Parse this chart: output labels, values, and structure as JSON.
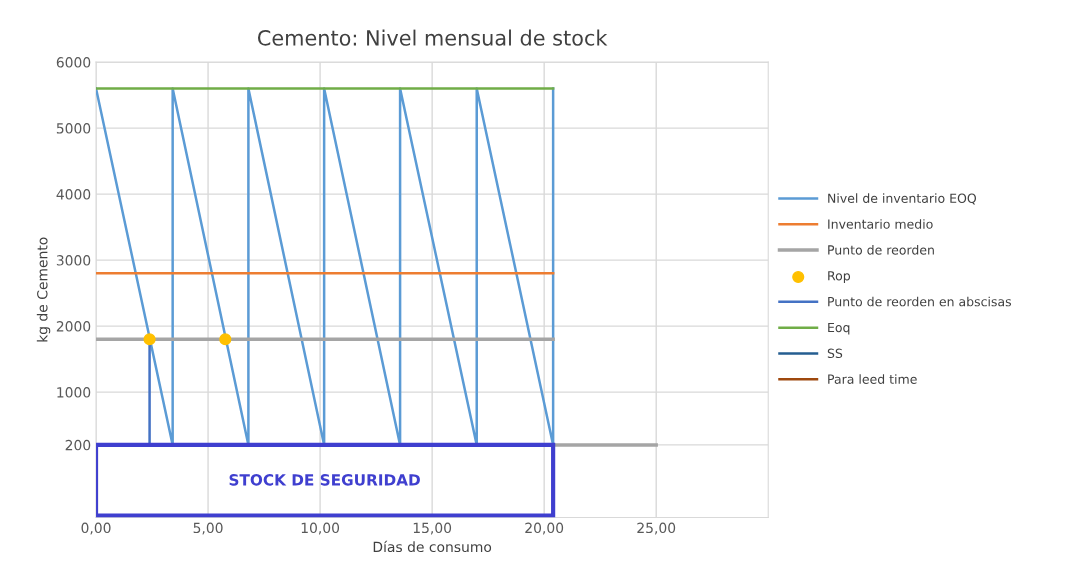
{
  "chart_data": {
    "type": "line",
    "title": "Cemento: Nivel mensual de stock",
    "xlabel": "Días de consumo",
    "ylabel": "kg de Cemento",
    "xlim": [
      0,
      30
    ],
    "xticks": [
      {
        "value": 0,
        "label": "0,00"
      },
      {
        "value": 5,
        "label": "5,00"
      },
      {
        "value": 10,
        "label": "10,00"
      },
      {
        "value": 15,
        "label": "15,00"
      },
      {
        "value": 20,
        "label": "20,00"
      },
      {
        "value": 25,
        "label": "25,00"
      }
    ],
    "ylim": [
      -900,
      6000
    ],
    "yticks": [
      200,
      1000,
      2000,
      3000,
      4000,
      5000,
      6000
    ],
    "grid": true,
    "legend": "right",
    "annotations": [
      "STOCK DE SEGURIDAD"
    ],
    "series": [
      {
        "name": "Nivel de inventario EOQ",
        "color": "#5b9bd5",
        "x": [
          0,
          3.42,
          3.42,
          6.8,
          6.8,
          10.18,
          10.18,
          13.57,
          13.57,
          16.99,
          16.99,
          20.4,
          20.4
        ],
        "values": [
          5600,
          200,
          5600,
          200,
          5600,
          200,
          5600,
          200,
          5600,
          200,
          5600,
          200,
          5600
        ]
      },
      {
        "name": "Inventario medio",
        "color": "#ed7d31",
        "x": [
          0,
          20.4
        ],
        "values": [
          2800,
          2800
        ]
      },
      {
        "name": "Punto de reorden",
        "color": "#a5a5a5",
        "x": [
          0,
          20.4
        ],
        "values": [
          1800,
          1800
        ]
      },
      {
        "name": "Rop",
        "type": "scatter",
        "color": "#ffc000",
        "x": [
          2.39,
          5.77
        ],
        "values": [
          1800,
          1800
        ]
      },
      {
        "name": "Punto de reorden en abscisas",
        "color": "#4472c4",
        "x": [
          2.39,
          2.39
        ],
        "values": [
          1800,
          200
        ]
      },
      {
        "name": "Eoq",
        "color": "#70ad47",
        "x": [
          0,
          20.4
        ],
        "values": [
          5600,
          5600
        ]
      },
      {
        "name": "SS",
        "color": "#255e91"
      },
      {
        "name": "Para leed time",
        "color": "#9e480e"
      },
      {
        "color": "#a5a5a5",
        "x": [
          20.4,
          25
        ],
        "values": [
          200,
          200
        ]
      }
    ]
  }
}
